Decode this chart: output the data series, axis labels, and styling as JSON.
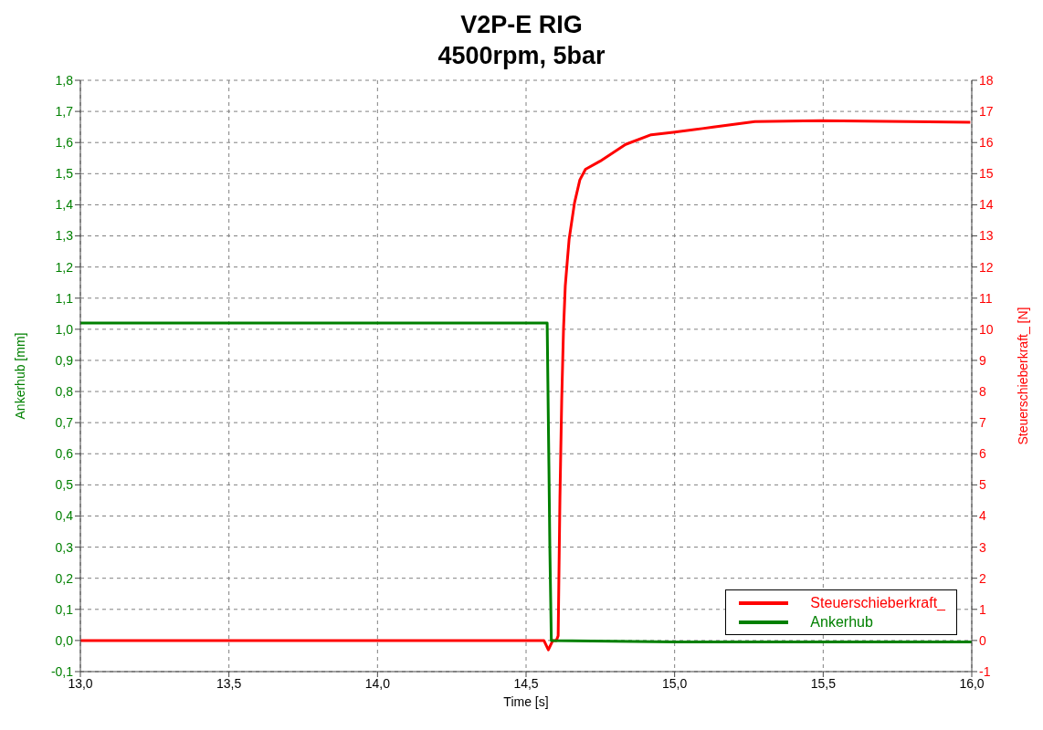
{
  "chart_data": {
    "type": "line",
    "title": "V2P-E RIG",
    "subtitle": "4500rpm, 5bar",
    "xlabel": "Time [s]",
    "ylabel": "Ankerhub [mm]",
    "y2label": "Steuerschieberkraft_ [N]",
    "xlim": [
      13,
      16
    ],
    "xticks": [
      {
        "value": 13,
        "label": "13,0"
      },
      {
        "value": 13.5,
        "label": "13,5"
      },
      {
        "value": 14,
        "label": "14,0"
      },
      {
        "value": 14.5,
        "label": "14,5"
      },
      {
        "value": 15,
        "label": "15,0"
      },
      {
        "value": 15.5,
        "label": "15,5"
      },
      {
        "value": 16,
        "label": "16,0"
      }
    ],
    "ylim": [
      -0.1,
      1.8
    ],
    "yticks": [
      {
        "value": -0.1,
        "label": "-0,1"
      },
      {
        "value": 0,
        "label": "0,0"
      },
      {
        "value": 0.1,
        "label": "0,1"
      },
      {
        "value": 0.2,
        "label": "0,2"
      },
      {
        "value": 0.3,
        "label": "0,3"
      },
      {
        "value": 0.4,
        "label": "0,4"
      },
      {
        "value": 0.5,
        "label": "0,5"
      },
      {
        "value": 0.6,
        "label": "0,6"
      },
      {
        "value": 0.7,
        "label": "0,7"
      },
      {
        "value": 0.8,
        "label": "0,8"
      },
      {
        "value": 0.9,
        "label": "0,9"
      },
      {
        "value": 1.0,
        "label": "1,0"
      },
      {
        "value": 1.1,
        "label": "1,1"
      },
      {
        "value": 1.2,
        "label": "1,2"
      },
      {
        "value": 1.3,
        "label": "1,3"
      },
      {
        "value": 1.4,
        "label": "1,4"
      },
      {
        "value": 1.5,
        "label": "1,5"
      },
      {
        "value": 1.6,
        "label": "1,6"
      },
      {
        "value": 1.7,
        "label": "1,7"
      },
      {
        "value": 1.8,
        "label": "1,8"
      }
    ],
    "y2lim": [
      -1,
      18
    ],
    "y2ticks": [
      -1,
      0,
      1,
      2,
      3,
      4,
      5,
      6,
      7,
      8,
      9,
      10,
      11,
      12,
      13,
      14,
      15,
      16,
      17,
      18
    ],
    "grid": true,
    "legend": "bottom right",
    "line_style": "solid",
    "series": [
      {
        "name": "Steuerschieberkraft_",
        "color": "#ff0000",
        "axis": "y2",
        "x": [
          13,
          14.0,
          14.56,
          14.575,
          14.59,
          14.602,
          14.608,
          14.614,
          14.62,
          14.626,
          14.632,
          14.638,
          14.645,
          14.663,
          14.681,
          14.7,
          14.749,
          14.835,
          14.921,
          14.995,
          15.093,
          15.13,
          15.27,
          15.49,
          15.995
        ],
        "values": [
          0,
          0,
          0,
          -0.3,
          0,
          0,
          0.15,
          4.6,
          7.75,
          10.0,
          11.4,
          12.1,
          12.9,
          14.06,
          14.8,
          15.14,
          15.4,
          15.94,
          16.25,
          16.33,
          16.45,
          16.5,
          16.67,
          16.7,
          16.65
        ]
      },
      {
        "name": "Ankerhub",
        "color": "#008000",
        "x": [
          13,
          14.571,
          14.577,
          14.58,
          14.585,
          15.0,
          16.0
        ],
        "values": [
          1.02,
          1.02,
          0.55,
          0.3,
          0,
          -0.005,
          -0.005
        ]
      }
    ]
  }
}
